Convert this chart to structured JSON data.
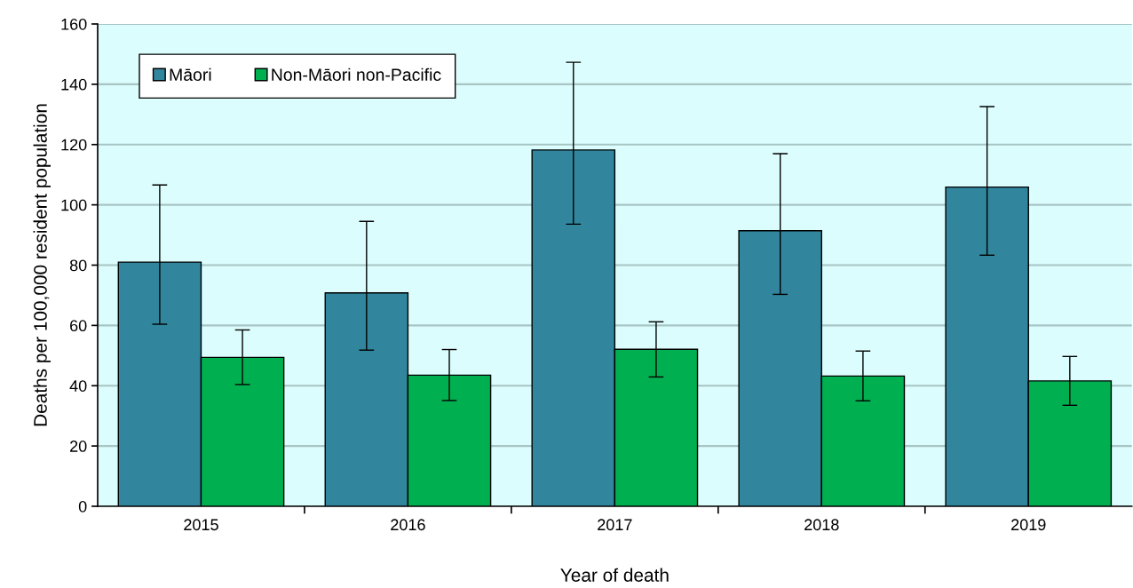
{
  "chart_data": {
    "type": "bar",
    "xlabel": "Year of death",
    "ylabel": "Deaths per 100,000 resident population",
    "categories": [
      "2015",
      "2016",
      "2017",
      "2018",
      "2019"
    ],
    "series": [
      {
        "name": "Māori",
        "color": "#31859c",
        "values": [
          81.0,
          70.8,
          118.2,
          91.4,
          105.9
        ],
        "errors": [
          [
            60.4,
            106.6
          ],
          [
            51.8,
            94.5
          ],
          [
            93.6,
            147.3
          ],
          [
            70.3,
            117.0
          ],
          [
            83.3,
            132.6
          ]
        ]
      },
      {
        "name": "Non-Māori non-Pacific",
        "color": "#00b050",
        "values": [
          49.4,
          43.5,
          52.1,
          43.2,
          41.6
        ],
        "errors": [
          [
            40.4,
            58.5
          ],
          [
            35.1,
            52.0
          ],
          [
            42.9,
            61.2
          ],
          [
            35.0,
            51.5
          ],
          [
            33.5,
            49.7
          ]
        ]
      }
    ],
    "ylim": [
      0,
      160
    ],
    "yticks": [
      0,
      20,
      40,
      60,
      80,
      100,
      120,
      140,
      160
    ],
    "grid": "y",
    "legend": "top left"
  }
}
